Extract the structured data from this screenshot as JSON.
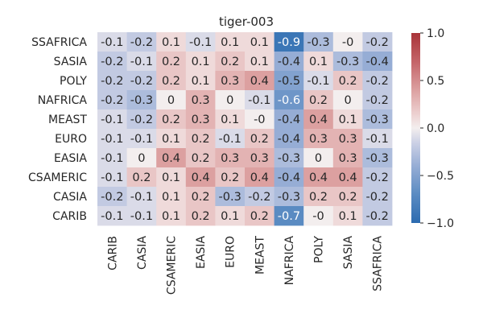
{
  "chart_data": {
    "type": "heatmap",
    "title": "tiger-003",
    "xlabel": "",
    "ylabel": "",
    "x_categories": [
      "CARIB",
      "CASIA",
      "CSAMERIC",
      "EASIA",
      "EURO",
      "MEAST",
      "NAFRICA",
      "POLY",
      "SASIA",
      "SSAFRICA"
    ],
    "y_categories": [
      "SSAFRICA",
      "SASIA",
      "POLY",
      "NAFRICA",
      "MEAST",
      "EURO",
      "EASIA",
      "CSAMERIC",
      "CASIA",
      "CARIB"
    ],
    "values": [
      [
        -0.1,
        -0.2,
        0.1,
        -0.1,
        0.1,
        0.1,
        -0.9,
        -0.3,
        -0.0,
        -0.2
      ],
      [
        -0.2,
        -0.1,
        0.2,
        0.1,
        0.2,
        0.1,
        -0.4,
        0.1,
        -0.3,
        -0.4
      ],
      [
        -0.2,
        -0.2,
        0.2,
        0.1,
        0.3,
        0.4,
        -0.5,
        -0.1,
        0.2,
        -0.2
      ],
      [
        -0.2,
        -0.3,
        0.0,
        0.3,
        0.0,
        -0.1,
        -0.6,
        0.2,
        0.0,
        -0.2
      ],
      [
        -0.1,
        -0.2,
        0.2,
        0.3,
        0.1,
        -0.0,
        -0.4,
        0.4,
        0.1,
        -0.3
      ],
      [
        -0.1,
        -0.1,
        0.1,
        0.2,
        -0.1,
        0.2,
        -0.4,
        0.3,
        0.3,
        -0.1
      ],
      [
        -0.1,
        0.0,
        0.4,
        0.2,
        0.3,
        0.3,
        -0.3,
        0.0,
        0.3,
        -0.3
      ],
      [
        -0.1,
        0.2,
        0.1,
        0.4,
        0.2,
        0.4,
        -0.4,
        0.4,
        0.4,
        -0.2
      ],
      [
        -0.2,
        -0.1,
        0.1,
        0.2,
        -0.3,
        -0.2,
        -0.3,
        0.2,
        0.2,
        -0.2
      ],
      [
        -0.1,
        -0.1,
        0.1,
        0.2,
        0.1,
        0.2,
        -0.7,
        -0.0,
        0.1,
        -0.2
      ]
    ],
    "cell_labels": [
      [
        "-0.1",
        "-0.2",
        "0.1",
        "-0.1",
        "0.1",
        "0.1",
        "-0.9",
        "-0.3",
        "-0",
        "-0.2"
      ],
      [
        "-0.2",
        "-0.1",
        "0.2",
        "0.1",
        "0.2",
        "0.1",
        "-0.4",
        "0.1",
        "-0.3",
        "-0.4"
      ],
      [
        "-0.2",
        "-0.2",
        "0.2",
        "0.1",
        "0.3",
        "0.4",
        "-0.5",
        "-0.1",
        "0.2",
        "-0.2"
      ],
      [
        "-0.2",
        "-0.3",
        "0",
        "0.3",
        "0",
        "-0.1",
        "-0.6",
        "0.2",
        "0",
        "-0.2"
      ],
      [
        "-0.1",
        "-0.2",
        "0.2",
        "0.3",
        "0.1",
        "-0",
        "-0.4",
        "0.4",
        "0.1",
        "-0.3"
      ],
      [
        "-0.1",
        "-0.1",
        "0.1",
        "0.2",
        "-0.1",
        "0.2",
        "-0.4",
        "0.3",
        "0.3",
        "-0.1"
      ],
      [
        "-0.1",
        "0",
        "0.4",
        "0.2",
        "0.3",
        "0.3",
        "-0.3",
        "0",
        "0.3",
        "-0.3"
      ],
      [
        "-0.1",
        "0.2",
        "0.1",
        "0.4",
        "0.2",
        "0.4",
        "-0.4",
        "0.4",
        "0.4",
        "-0.2"
      ],
      [
        "-0.2",
        "-0.1",
        "0.1",
        "0.2",
        "-0.3",
        "-0.2",
        "-0.3",
        "0.2",
        "0.2",
        "-0.2"
      ],
      [
        "-0.1",
        "-0.1",
        "0.1",
        "0.2",
        "0.1",
        "0.2",
        "-0.7",
        "-0",
        "0.1",
        "-0.2"
      ]
    ],
    "vmin": -1.0,
    "vmax": 1.0,
    "colormap": "vlag",
    "colorbar": {
      "ticks": [
        1.0,
        0.5,
        0.0,
        -0.5,
        -1.0
      ],
      "tick_labels": [
        "1.0",
        "0.5",
        "0.0",
        "−0.5",
        "−1.0"
      ]
    },
    "grid": false
  }
}
